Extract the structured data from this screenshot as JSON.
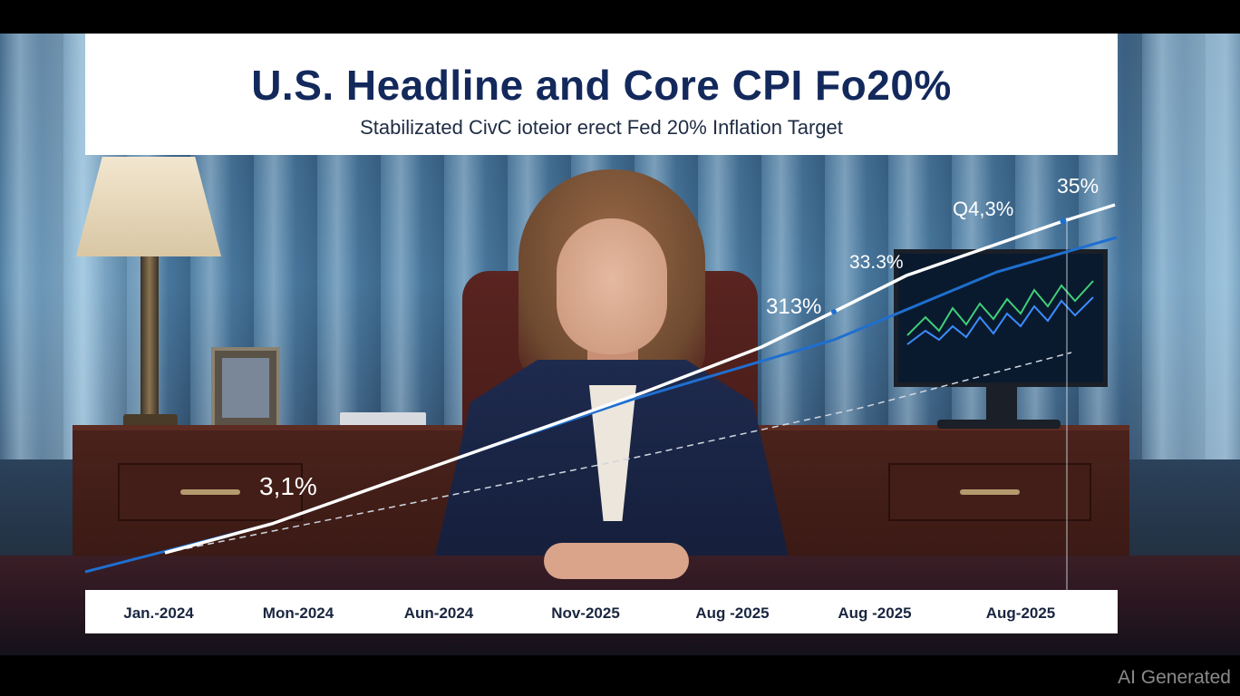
{
  "chart_data": {
    "type": "line",
    "title": "U.S. Headline and Core CPI Fo20%",
    "subtitle": "Stabilizated CivC ioteior erect Fed 20% Inflation Target",
    "categories": [
      "Jan.-2024",
      "Mon-2024",
      "Aun-2024",
      "Nov-2025",
      "Aug -2025",
      "Aug -2025",
      "Aug-2025"
    ],
    "series": [
      {
        "kind": "headline",
        "color": "#ffffff"
      },
      {
        "kind": "core",
        "color": "#1f6fd0"
      },
      {
        "kind": "target",
        "color": "#d0d6e0",
        "style": "dashed"
      }
    ],
    "annotations": [
      "3,1%",
      "313%",
      "33.3%",
      "Q4,3%",
      "35%"
    ],
    "grid": false,
    "legend": "none"
  },
  "watermark": "AI Generated",
  "colors": {
    "title": "#13295c",
    "panel": "#ffffff",
    "headline": "#ffffff",
    "core": "#1f6fd0"
  }
}
